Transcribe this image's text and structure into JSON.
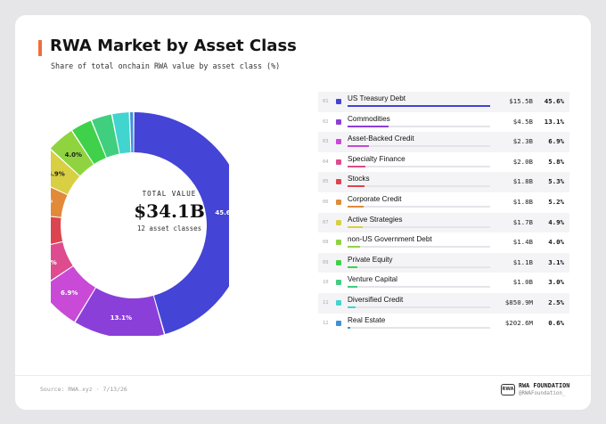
{
  "header": {
    "title": "RWA Market by Asset Class",
    "subtitle": "Share of total onchain RWA value by asset class (%)"
  },
  "center": {
    "top_label": "TOTAL VALUE",
    "value": "$34.1B",
    "sub_label": "12 asset classes"
  },
  "footer": {
    "source": "Source: RWA.xyz · 7/13/26",
    "logo_text": "RWA",
    "brand": "RWA FOUNDATION",
    "handle": "@RWAFoundation_"
  },
  "colors": {
    "accent": "#ef6f3a"
  },
  "chart_data": {
    "type": "pie",
    "title": "RWA Market by Asset Class",
    "subtitle": "Share of total onchain RWA value by asset class (%)",
    "total": "$34.1B",
    "categories": [
      {
        "idx": "01",
        "name": "US Treasury Debt",
        "value": "$15.5B",
        "pct": 45.6,
        "pct_label": "45.6%",
        "color": "#4444d6"
      },
      {
        "idx": "02",
        "name": "Commodities",
        "value": "$4.5B",
        "pct": 13.1,
        "pct_label": "13.1%",
        "color": "#8b3fd9"
      },
      {
        "idx": "03",
        "name": "Asset-Backed Credit",
        "value": "$2.3B",
        "pct": 6.9,
        "pct_label": "6.9%",
        "color": "#c84ad6"
      },
      {
        "idx": "04",
        "name": "Specialty Finance",
        "value": "$2.0B",
        "pct": 5.8,
        "pct_label": "5.8%",
        "color": "#de4b8e"
      },
      {
        "idx": "05",
        "name": "Stocks",
        "value": "$1.8B",
        "pct": 5.3,
        "pct_label": "5.3%",
        "color": "#dc4450"
      },
      {
        "idx": "06",
        "name": "Corporate Credit",
        "value": "$1.8B",
        "pct": 5.2,
        "pct_label": "5.2%",
        "color": "#e08a3a"
      },
      {
        "idx": "07",
        "name": "Active Strategies",
        "value": "$1.7B",
        "pct": 4.9,
        "pct_label": "4.9%",
        "color": "#d8cf42"
      },
      {
        "idx": "08",
        "name": "non-US Government Debt",
        "value": "$1.4B",
        "pct": 4.0,
        "pct_label": "4.0%",
        "color": "#8fd43f"
      },
      {
        "idx": "09",
        "name": "Private Equity",
        "value": "$1.1B",
        "pct": 3.1,
        "pct_label": "3.1%",
        "color": "#3fd14a"
      },
      {
        "idx": "10",
        "name": "Venture Capital",
        "value": "$1.0B",
        "pct": 3.0,
        "pct_label": "3.0%",
        "color": "#3fcf7e"
      },
      {
        "idx": "11",
        "name": "Diversified Credit",
        "value": "$850.9M",
        "pct": 2.5,
        "pct_label": "2.5%",
        "color": "#42d4cf"
      },
      {
        "idx": "12",
        "name": "Real Estate",
        "value": "$202.6M",
        "pct": 0.6,
        "pct_label": "0.6%",
        "color": "#3f8fd9"
      }
    ],
    "slice_labels_shown_min_pct": 4.0
  }
}
